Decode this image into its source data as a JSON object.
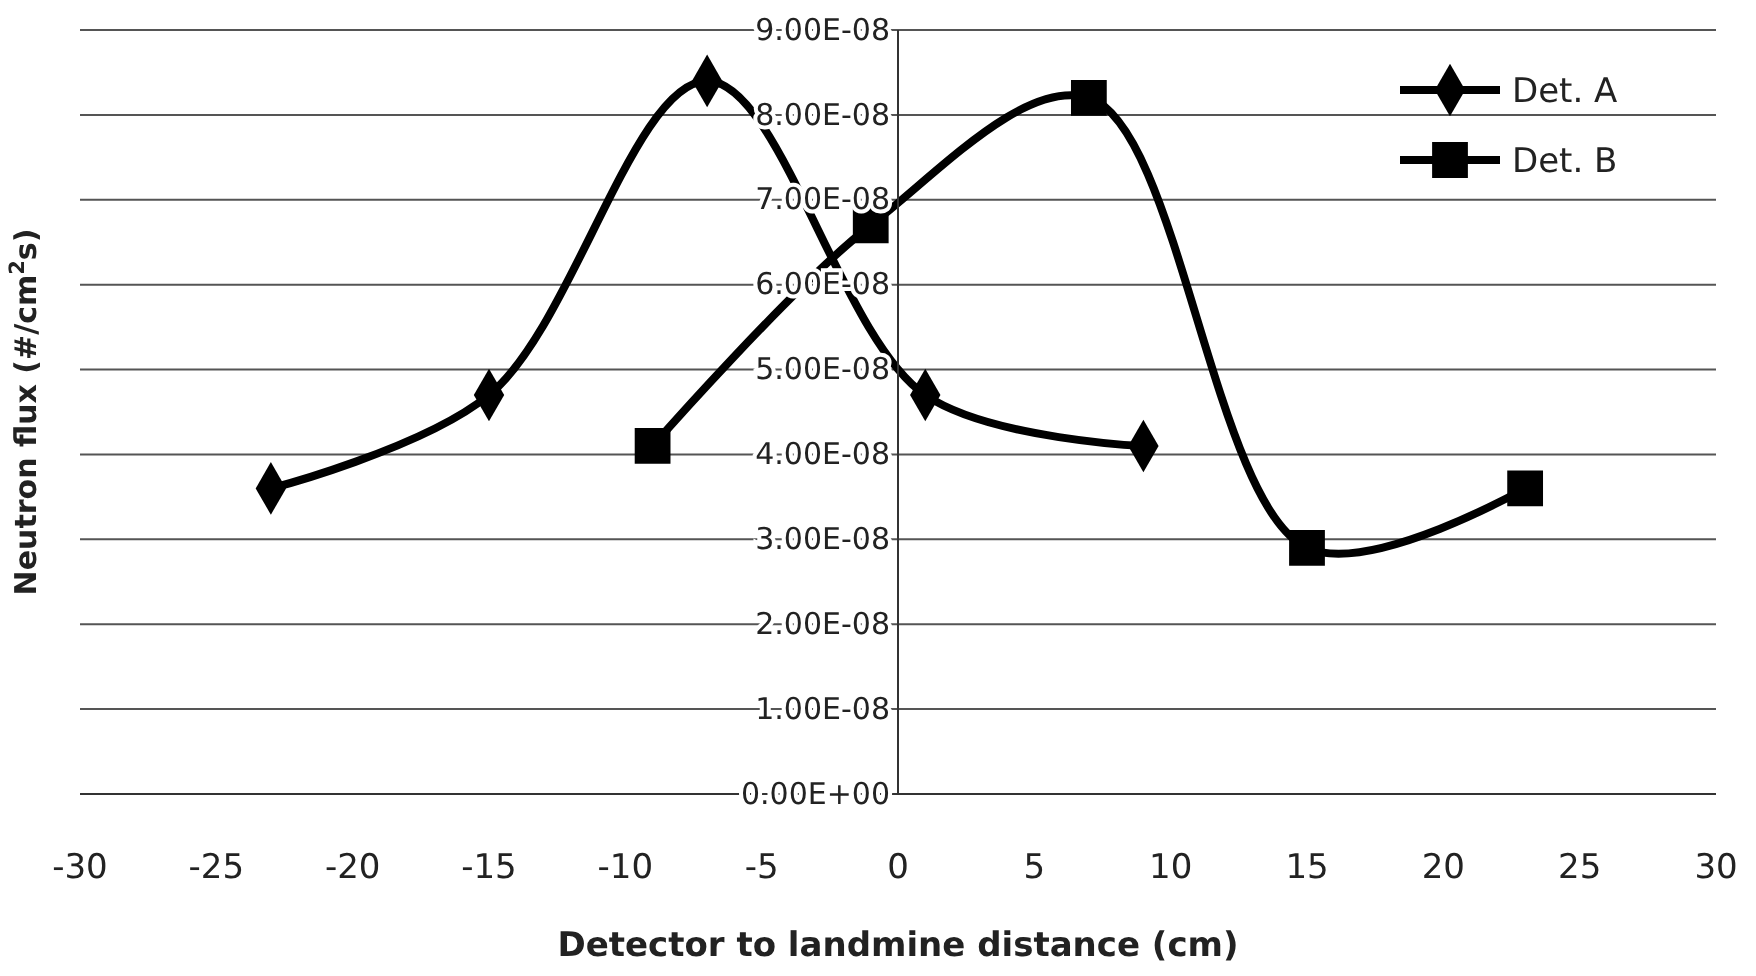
{
  "chart_data": {
    "type": "line",
    "xlabel": "Detector to landmine distance (cm)",
    "ylabel": "Neutron flux (#/cm$^{2}$s)",
    "xlim": [
      -30,
      30
    ],
    "xticks": [
      -30,
      -25,
      -20,
      -15,
      -10,
      -5,
      0,
      5,
      10,
      15,
      20,
      25,
      30
    ],
    "ylim": [
      0,
      9e-08
    ],
    "yticks": [
      {
        "value": 0,
        "label": "0.00E+00"
      },
      {
        "value": 1e-08,
        "label": "1.00E-08"
      },
      {
        "value": 2e-08,
        "label": "2.00E-08"
      },
      {
        "value": 3e-08,
        "label": "3.00E-08"
      },
      {
        "value": 4e-08,
        "label": "4.00E-08"
      },
      {
        "value": 5e-08,
        "label": "5.00E-08"
      },
      {
        "value": 6e-08,
        "label": "6.00E-08"
      },
      {
        "value": 7e-08,
        "label": "7.00E-08"
      },
      {
        "value": 8e-08,
        "label": "8.00E-08"
      },
      {
        "value": 9e-08,
        "label": "9.00E-08"
      }
    ],
    "grid": "y",
    "legend": "top right",
    "series": [
      {
        "name": "Det. A",
        "color": "#000000",
        "marker": "diamond",
        "x": [
          -23,
          -15,
          -7,
          1,
          9
        ],
        "values": [
          3.6e-08,
          4.7e-08,
          8.4e-08,
          4.7e-08,
          4.1e-08
        ]
      },
      {
        "name": "Det. B",
        "color": "#000000",
        "marker": "square",
        "x": [
          -9,
          -1,
          7,
          15,
          23
        ],
        "values": [
          4.1e-08,
          6.7e-08,
          8.2e-08,
          2.9e-08,
          3.6e-08
        ]
      }
    ]
  }
}
